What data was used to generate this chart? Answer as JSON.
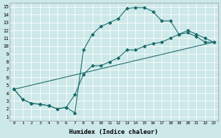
{
  "xlabel": "Humidex (Indice chaleur)",
  "xlim": [
    -0.5,
    23.5
  ],
  "ylim": [
    0.5,
    15.5
  ],
  "xticks": [
    0,
    1,
    2,
    3,
    4,
    5,
    6,
    7,
    8,
    9,
    10,
    11,
    12,
    13,
    14,
    15,
    16,
    17,
    18,
    19,
    20,
    21,
    22,
    23
  ],
  "yticks": [
    1,
    2,
    3,
    4,
    5,
    6,
    7,
    8,
    9,
    10,
    11,
    12,
    13,
    14,
    15
  ],
  "bg_color": "#cde8e8",
  "line_color": "#1a6b6b",
  "grid_color": "#b8d8d8",
  "line1_x": [
    0,
    1,
    2,
    3,
    4,
    5,
    6,
    7,
    8,
    9,
    10,
    11,
    12,
    13,
    14,
    15,
    16,
    17,
    18,
    19,
    20,
    21,
    22,
    23
  ],
  "line1_y": [
    4.5,
    3.2,
    2.7,
    2.6,
    2.4,
    2.0,
    2.2,
    1.5,
    9.5,
    11.5,
    12.5,
    13.0,
    13.5,
    14.8,
    14.9,
    14.9,
    14.4,
    13.2,
    13.2,
    11.5,
    11.7,
    11.2,
    10.5,
    10.5
  ],
  "line2_x": [
    0,
    1,
    2,
    3,
    4,
    5,
    6,
    7,
    8,
    9,
    10,
    11,
    12,
    13,
    14,
    15,
    16,
    17,
    18,
    19,
    20,
    21,
    22,
    23
  ],
  "line2_y": [
    4.5,
    3.2,
    2.7,
    2.6,
    2.4,
    2.0,
    2.2,
    3.8,
    6.4,
    7.5,
    7.5,
    8.0,
    8.5,
    9.5,
    9.5,
    10.0,
    10.3,
    10.5,
    11.0,
    11.5,
    12.0,
    11.5,
    11.0,
    10.5
  ],
  "line3_x": [
    0,
    23
  ],
  "line3_y": [
    4.5,
    10.5
  ],
  "marker": "D",
  "marker_size": 2.0,
  "line_width": 0.8
}
